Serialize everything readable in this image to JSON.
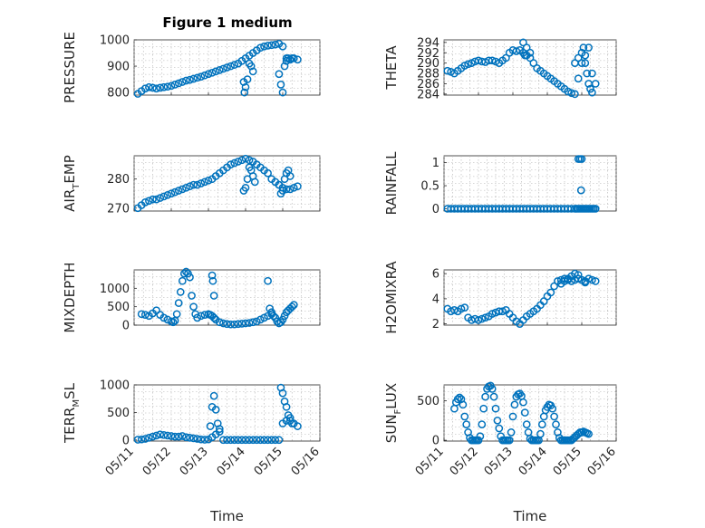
{
  "title": "Figure 1 medium",
  "chart_data": [
    {
      "type": "scatter",
      "ylabel": "PRESSURE",
      "ylim": [
        790,
        1000
      ],
      "yticks": [
        800,
        900,
        1000
      ],
      "xlim": [
        0,
        5
      ],
      "xticks": [],
      "xlabel": "",
      "grid": true,
      "color": "#0072BD",
      "series": [
        {
          "x": [
            0.1,
            0.2,
            0.3,
            0.4,
            0.5,
            0.6,
            0.7,
            0.8,
            0.9,
            1.0,
            1.1,
            1.2,
            1.3,
            1.4,
            1.5,
            1.6,
            1.7,
            1.8,
            1.9,
            2.0,
            2.1,
            2.2,
            2.3,
            2.4,
            2.5,
            2.6,
            2.7,
            2.8,
            2.9,
            3.0,
            3.1,
            3.2,
            3.3,
            3.4,
            3.5,
            3.6,
            3.7,
            3.8,
            3.9,
            4.0,
            4.1,
            4.2,
            4.3,
            4.4,
            2.95,
            2.97,
            3.0,
            3.05,
            3.1,
            3.15,
            3.2,
            3.9,
            3.95,
            4.0,
            4.05,
            4.1,
            4.15,
            4.2,
            4.25
          ],
          "y": [
            795,
            805,
            815,
            820,
            818,
            815,
            818,
            820,
            822,
            825,
            830,
            835,
            840,
            845,
            848,
            852,
            856,
            860,
            865,
            870,
            875,
            880,
            885,
            890,
            895,
            900,
            905,
            910,
            920,
            930,
            940,
            950,
            960,
            970,
            975,
            978,
            980,
            982,
            985,
            975,
            930,
            925,
            930,
            925,
            840,
            800,
            820,
            850,
            910,
            900,
            880,
            870,
            830,
            800,
            900,
            920,
            930,
            925,
            930
          ]
        }
      ]
    },
    {
      "type": "scatter",
      "ylabel": "THETA",
      "ylim": [
        283.8,
        294.5
      ],
      "yticks": [
        284,
        286,
        288,
        290,
        292,
        294
      ],
      "xlim": [
        0,
        5
      ],
      "xticks": [],
      "xlabel": "",
      "grid": true,
      "color": "#0072BD",
      "series": [
        {
          "x": [
            0.1,
            0.2,
            0.3,
            0.4,
            0.5,
            0.6,
            0.7,
            0.8,
            0.9,
            1.0,
            1.1,
            1.2,
            1.3,
            1.4,
            1.5,
            1.6,
            1.7,
            1.8,
            1.9,
            2.0,
            2.1,
            2.2,
            2.3,
            2.4,
            2.5,
            2.6,
            2.7,
            2.8,
            2.9,
            3.0,
            3.1,
            3.2,
            3.3,
            3.4,
            3.5,
            3.6,
            3.7,
            3.8,
            3.9,
            4.0,
            4.1,
            4.2,
            4.3,
            4.4,
            2.3,
            2.4,
            2.5,
            2.35,
            3.8,
            3.9,
            4.0,
            4.05,
            4.1,
            4.15,
            4.2,
            4.25,
            4.3
          ],
          "y": [
            288.5,
            288.3,
            288.0,
            288.5,
            289.0,
            289.5,
            289.8,
            290.0,
            290.3,
            290.5,
            290.3,
            290.2,
            290.5,
            290.5,
            290.3,
            290.0,
            290.5,
            291.0,
            292.0,
            292.5,
            292.3,
            292.5,
            292.0,
            291.5,
            291.0,
            290.0,
            289.0,
            288.5,
            288.0,
            287.5,
            287.0,
            286.5,
            286.0,
            285.5,
            285.0,
            284.5,
            284.2,
            284.0,
            287,
            290,
            291.5,
            293,
            288,
            286,
            294,
            293,
            292,
            291.5,
            290,
            291,
            292,
            293,
            290,
            288,
            286,
            285,
            284.3
          ]
        }
      ]
    },
    {
      "type": "scatter",
      "ylabel": "AIR_TEMP",
      "ylim": [
        269,
        288
      ],
      "yticks": [
        270,
        280
      ],
      "xlim": [
        0,
        5
      ],
      "xticks": [],
      "xlabel": "",
      "grid": true,
      "color": "#0072BD",
      "series": [
        {
          "x": [
            0.1,
            0.2,
            0.3,
            0.4,
            0.5,
            0.6,
            0.7,
            0.8,
            0.9,
            1.0,
            1.1,
            1.2,
            1.3,
            1.4,
            1.5,
            1.6,
            1.7,
            1.8,
            1.9,
            2.0,
            2.1,
            2.2,
            2.3,
            2.4,
            2.5,
            2.6,
            2.7,
            2.8,
            2.9,
            3.0,
            3.1,
            3.2,
            3.3,
            3.4,
            3.5,
            3.6,
            3.7,
            3.8,
            3.9,
            4.0,
            4.1,
            4.2,
            4.3,
            4.4,
            2.95,
            3.0,
            3.05,
            3.1,
            3.15,
            3.2,
            3.25,
            3.9,
            3.95,
            4.0,
            4.05,
            4.1,
            4.15,
            4.2
          ],
          "y": [
            270,
            271,
            272,
            272.5,
            273,
            273,
            273.5,
            274,
            274.5,
            275,
            275.5,
            276,
            276.5,
            277,
            277.5,
            278,
            278,
            278.5,
            279,
            279.5,
            280,
            281,
            282,
            283,
            284,
            285,
            285.5,
            286,
            286.5,
            287,
            286.5,
            286,
            285,
            284,
            283,
            282,
            280,
            279,
            278,
            277,
            276.5,
            276.5,
            277,
            277.5,
            276,
            277,
            280,
            284,
            283,
            281,
            279,
            278,
            275,
            276,
            280,
            282,
            283,
            281
          ]
        }
      ]
    },
    {
      "type": "scatter",
      "ylabel": "RAINFALL",
      "ylim": [
        -0.05,
        1.15
      ],
      "yticks": [
        0,
        0.5,
        1
      ],
      "xlim": [
        0,
        5
      ],
      "xticks": [],
      "xlabel": "",
      "grid": true,
      "color": "#0072BD",
      "series": [
        {
          "x": [
            0.1,
            0.2,
            0.3,
            0.4,
            0.5,
            0.6,
            0.7,
            0.8,
            0.9,
            1.0,
            1.1,
            1.2,
            1.3,
            1.4,
            1.5,
            1.6,
            1.7,
            1.8,
            1.9,
            2.0,
            2.1,
            2.2,
            2.3,
            2.4,
            2.5,
            2.6,
            2.7,
            2.8,
            2.9,
            3.0,
            3.1,
            3.2,
            3.3,
            3.4,
            3.5,
            3.6,
            3.7,
            3.8,
            3.85,
            3.9,
            3.95,
            4.0,
            4.05,
            4.1,
            4.15,
            4.2,
            4.25,
            4.3,
            4.35,
            4.4,
            3.9,
            3.95,
            4.0,
            3.98
          ],
          "y": [
            0,
            0,
            0,
            0,
            0,
            0,
            0,
            0,
            0,
            0,
            0,
            0,
            0,
            0,
            0,
            0,
            0,
            0,
            0,
            0,
            0,
            0,
            0,
            0,
            0,
            0,
            0,
            0,
            0,
            0,
            0,
            0,
            0,
            0,
            0,
            0,
            0,
            0,
            0,
            0,
            0,
            0,
            0,
            0,
            0,
            0,
            0,
            0,
            0,
            0,
            1.08,
            1.08,
            1.08,
            0.4
          ]
        }
      ]
    },
    {
      "type": "scatter",
      "ylabel": "MIXDEPTH",
      "ylim": [
        0,
        1500
      ],
      "yticks": [
        0,
        500,
        1000
      ],
      "xlim": [
        0,
        5
      ],
      "xticks": [],
      "xlabel": "",
      "grid": true,
      "color": "#0072BD",
      "series": [
        {
          "x": [
            0.2,
            0.3,
            0.4,
            0.5,
            0.6,
            0.7,
            0.8,
            0.9,
            1.0,
            1.05,
            1.1,
            1.15,
            1.2,
            1.25,
            1.3,
            1.35,
            1.4,
            1.45,
            1.5,
            1.55,
            1.6,
            1.65,
            1.7,
            1.8,
            1.9,
            2.0,
            2.05,
            2.1,
            2.15,
            2.2,
            2.3,
            2.4,
            2.5,
            2.6,
            2.7,
            2.8,
            2.9,
            3.0,
            3.1,
            3.2,
            3.3,
            3.4,
            3.5,
            3.6,
            3.7,
            3.8,
            3.85,
            3.9,
            3.95,
            4.0,
            4.05,
            4.1,
            4.15,
            4.2,
            4.25,
            4.3,
            2.1,
            2.12,
            2.15,
            3.6,
            3.65,
            3.7,
            3.75
          ],
          "y": [
            300,
            280,
            250,
            320,
            400,
            280,
            200,
            150,
            100,
            80,
            120,
            300,
            600,
            900,
            1200,
            1400,
            1450,
            1400,
            1300,
            800,
            500,
            300,
            200,
            250,
            280,
            300,
            280,
            250,
            200,
            150,
            80,
            50,
            30,
            20,
            20,
            30,
            40,
            50,
            60,
            80,
            100,
            150,
            200,
            250,
            300,
            200,
            100,
            50,
            80,
            150,
            250,
            350,
            400,
            450,
            500,
            550,
            1350,
            1200,
            800,
            1200,
            450,
            350,
            250
          ]
        }
      ]
    },
    {
      "type": "scatter",
      "ylabel": "H2OMIXRA",
      "ylim": [
        1.9,
        6.3
      ],
      "yticks": [
        2,
        4,
        6
      ],
      "xlim": [
        0,
        5
      ],
      "xticks": [],
      "xlabel": "",
      "grid": true,
      "color": "#0072BD",
      "series": [
        {
          "x": [
            0.1,
            0.2,
            0.3,
            0.4,
            0.5,
            0.6,
            0.7,
            0.8,
            0.9,
            1.0,
            1.1,
            1.2,
            1.3,
            1.4,
            1.5,
            1.6,
            1.7,
            1.8,
            1.9,
            2.0,
            2.1,
            2.2,
            2.3,
            2.4,
            2.5,
            2.6,
            2.7,
            2.8,
            2.9,
            3.0,
            3.1,
            3.2,
            3.3,
            3.4,
            3.5,
            3.6,
            3.7,
            3.8,
            3.9,
            4.0,
            4.1,
            4.2,
            4.3,
            4.4,
            3.4,
            3.5,
            3.6,
            3.7,
            3.8,
            3.9,
            4.0,
            4.1
          ],
          "y": [
            3.2,
            3.0,
            3.1,
            3.0,
            3.2,
            3.3,
            2.5,
            2.3,
            2.4,
            2.3,
            2.4,
            2.5,
            2.6,
            2.8,
            2.9,
            3.0,
            3.0,
            3.1,
            2.8,
            2.5,
            2.2,
            2.0,
            2.3,
            2.6,
            2.8,
            3.0,
            3.2,
            3.5,
            3.8,
            4.2,
            4.5,
            5.0,
            5.4,
            5.5,
            5.6,
            5.5,
            5.4,
            5.5,
            5.6,
            5.5,
            5.4,
            5.6,
            5.5,
            5.4,
            5.2,
            5.4,
            5.6,
            5.8,
            6.0,
            5.9,
            5.5,
            5.3
          ]
        }
      ]
    },
    {
      "type": "scatter",
      "ylabel": "TERR_MSL",
      "ylim": [
        -20,
        1000
      ],
      "yticks": [
        0,
        500,
        1000
      ],
      "xlim": [
        0,
        5
      ],
      "xticks": [
        "05/11",
        "05/12",
        "05/13",
        "05/14",
        "05/15",
        "05/16"
      ],
      "xlabel": "Time",
      "grid": true,
      "color": "#0072BD",
      "series": [
        {
          "x": [
            0.1,
            0.2,
            0.3,
            0.4,
            0.5,
            0.6,
            0.7,
            0.8,
            0.9,
            1.0,
            1.1,
            1.2,
            1.3,
            1.4,
            1.5,
            1.6,
            1.7,
            1.8,
            1.9,
            2.0,
            2.1,
            2.2,
            2.3,
            2.4,
            2.5,
            2.6,
            2.7,
            2.8,
            2.9,
            3.0,
            3.1,
            3.2,
            3.3,
            3.4,
            3.5,
            3.6,
            3.7,
            3.8,
            3.9,
            4.0,
            4.1,
            4.2,
            4.3,
            4.4,
            2.05,
            2.1,
            2.15,
            2.2,
            2.25,
            2.3,
            3.95,
            4.0,
            4.05,
            4.1,
            4.15,
            4.2,
            4.25
          ],
          "y": [
            5,
            10,
            20,
            40,
            60,
            80,
            100,
            90,
            80,
            70,
            60,
            60,
            70,
            50,
            40,
            30,
            20,
            10,
            5,
            10,
            50,
            100,
            150,
            0,
            0,
            0,
            0,
            0,
            0,
            0,
            0,
            0,
            0,
            0,
            0,
            0,
            0,
            0,
            0,
            300,
            350,
            400,
            300,
            250,
            250,
            600,
            800,
            550,
            300,
            200,
            950,
            850,
            700,
            600,
            450,
            350,
            300
          ]
        }
      ]
    },
    {
      "type": "scatter",
      "ylabel": "SUN_FLUX",
      "ylim": [
        -10,
        700
      ],
      "yticks": [
        0,
        500
      ],
      "xlim": [
        0,
        5
      ],
      "xticks": [
        "05/11",
        "05/12",
        "05/13",
        "05/14",
        "05/15",
        "05/16"
      ],
      "xlabel": "Time",
      "grid": true,
      "color": "#0072BD",
      "series": [
        {
          "x": [
            0.3,
            0.35,
            0.4,
            0.45,
            0.5,
            0.55,
            0.6,
            0.65,
            0.7,
            0.75,
            0.8,
            0.85,
            0.9,
            0.95,
            1.0,
            1.05,
            1.1,
            1.15,
            1.2,
            1.25,
            1.3,
            1.35,
            1.4,
            1.45,
            1.5,
            1.55,
            1.6,
            1.65,
            1.7,
            1.75,
            1.8,
            1.85,
            1.9,
            1.95,
            2.0,
            2.05,
            2.1,
            2.15,
            2.2,
            2.25,
            2.3,
            2.35,
            2.4,
            2.45,
            2.5,
            2.55,
            2.6,
            2.65,
            2.7,
            2.75,
            2.8,
            2.85,
            2.9,
            2.95,
            3.0,
            3.05,
            3.1,
            3.15,
            3.2,
            3.25,
            3.3,
            3.35,
            3.4,
            3.45,
            3.5,
            3.55,
            3.6,
            3.65,
            3.7,
            3.75,
            3.8,
            3.85,
            3.9,
            3.95,
            4.0,
            4.05,
            4.1,
            4.15,
            4.2
          ],
          "y": [
            400,
            480,
            520,
            540,
            520,
            450,
            300,
            200,
            100,
            30,
            0,
            0,
            0,
            0,
            0,
            50,
            200,
            400,
            550,
            650,
            680,
            690,
            650,
            550,
            400,
            250,
            150,
            50,
            0,
            0,
            0,
            0,
            0,
            100,
            300,
            450,
            550,
            580,
            590,
            560,
            480,
            350,
            200,
            100,
            20,
            0,
            0,
            0,
            0,
            0,
            80,
            200,
            300,
            380,
            420,
            450,
            440,
            400,
            300,
            200,
            100,
            30,
            0,
            0,
            0,
            0,
            0,
            0,
            0,
            20,
            40,
            60,
            80,
            100,
            100,
            110,
            100,
            90,
            80
          ]
        }
      ]
    }
  ]
}
